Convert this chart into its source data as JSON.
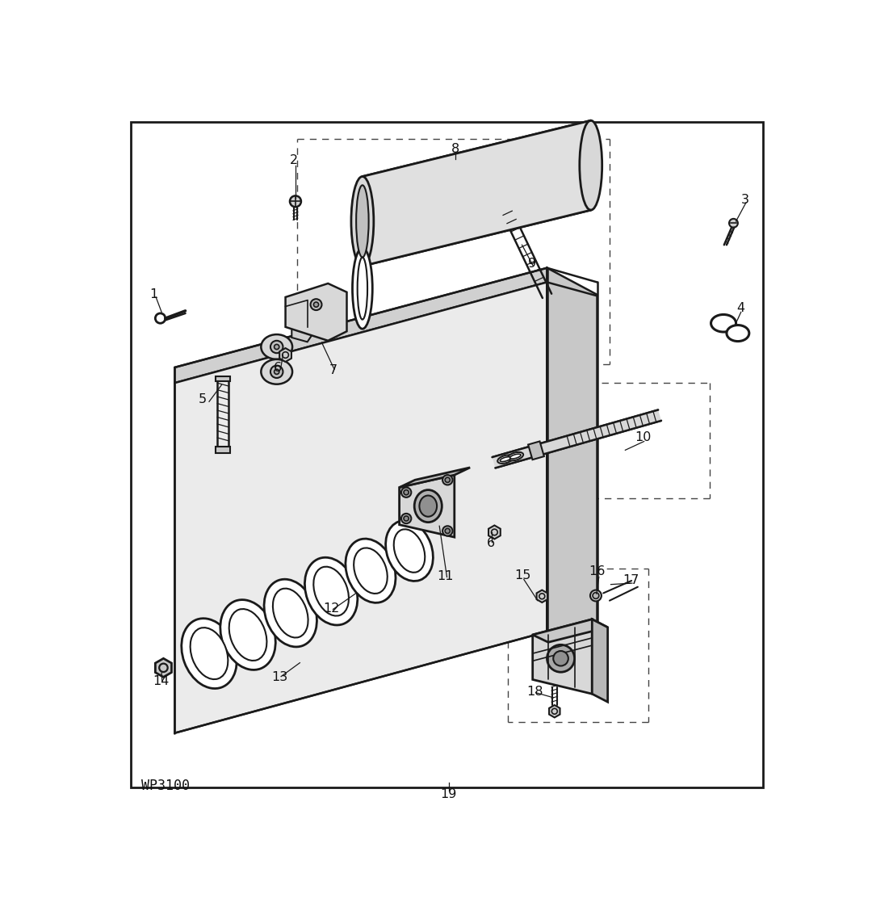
{
  "bg_color": "#ffffff",
  "line_color": "#1a1a1a",
  "wp_label": "WP3100",
  "figsize": [
    10.8,
    11.28
  ],
  "dpi": 100,
  "border": [
    35,
    20,
    1010,
    1070
  ],
  "outer_border": [
    35,
    20,
    1045,
    1090
  ],
  "labels": [
    [
      "1",
      75,
      300,
      60,
      310,
      105,
      340
    ],
    [
      "2",
      298,
      85,
      298,
      120,
      298,
      145
    ],
    [
      "3",
      1020,
      148,
      1010,
      165,
      1003,
      183
    ],
    [
      "4",
      1012,
      323,
      1005,
      342,
      998,
      358
    ],
    [
      "5",
      152,
      468,
      172,
      490,
      185,
      510
    ],
    [
      "6",
      276,
      408,
      275,
      395,
      285,
      385
    ],
    [
      "6",
      616,
      690,
      615,
      678,
      623,
      668
    ],
    [
      "7",
      362,
      415,
      345,
      385,
      335,
      368
    ],
    [
      "8",
      555,
      65,
      555,
      78,
      555,
      90
    ],
    [
      "9",
      682,
      248,
      665,
      228,
      650,
      210
    ],
    [
      "10",
      858,
      530,
      835,
      546,
      815,
      558
    ],
    [
      "11",
      542,
      748,
      530,
      688,
      518,
      672
    ],
    [
      "12",
      360,
      800,
      385,
      778,
      400,
      763
    ],
    [
      "13",
      278,
      910,
      303,
      890,
      318,
      878
    ],
    [
      "14",
      88,
      920,
      85,
      910,
      82,
      900
    ],
    [
      "15",
      665,
      752,
      675,
      772,
      682,
      785
    ],
    [
      "16",
      785,
      748,
      785,
      762,
      785,
      772
    ],
    [
      "17",
      838,
      758,
      810,
      758,
      800,
      758
    ],
    [
      "18",
      683,
      935,
      695,
      920,
      702,
      910
    ],
    [
      "19",
      543,
      1100,
      543,
      1092,
      543,
      1085
    ]
  ]
}
